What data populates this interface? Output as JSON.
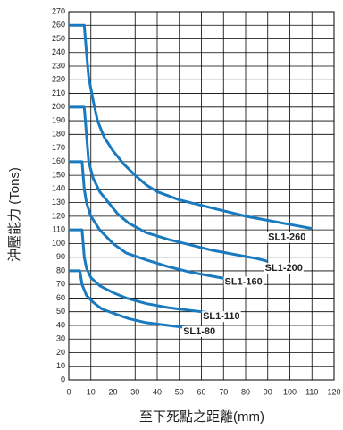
{
  "chart_data": {
    "type": "line",
    "xlabel": "至下死點之距離(mm)",
    "ylabel": "沖壓能力 (Tons)",
    "xlim": [
      0,
      120
    ],
    "xticks": [
      0,
      10,
      20,
      30,
      40,
      50,
      60,
      70,
      80,
      90,
      100,
      110,
      120
    ],
    "ylim": [
      0,
      270
    ],
    "yticks": [
      0,
      10,
      20,
      30,
      40,
      50,
      60,
      70,
      80,
      90,
      100,
      110,
      120,
      130,
      140,
      150,
      160,
      170,
      180,
      190,
      200,
      210,
      220,
      230,
      240,
      250,
      260,
      270
    ],
    "grid": true,
    "series": [
      {
        "name": "SL1-260",
        "color": "#1a7ac0",
        "x": [
          0,
          7,
          8,
          9,
          11,
          13,
          16,
          20,
          25,
          30,
          35,
          40,
          50,
          60,
          70,
          80,
          90,
          100,
          110
        ],
        "values": [
          260,
          260,
          240,
          222,
          205,
          190,
          178,
          168,
          158,
          150,
          143,
          138,
          132,
          128,
          124,
          120,
          117,
          114,
          111
        ]
      },
      {
        "name": "SL1-200",
        "color": "#1a7ac0",
        "x": [
          0,
          7,
          8,
          9,
          11,
          14,
          18,
          22,
          27,
          35,
          45,
          55,
          65,
          75,
          85,
          90
        ],
        "values": [
          200,
          200,
          180,
          160,
          148,
          138,
          130,
          122,
          115,
          108,
          103,
          99,
          95,
          92,
          89,
          87
        ]
      },
      {
        "name": "SL1-160",
        "color": "#1a7ac0",
        "x": [
          0,
          6,
          7,
          8,
          10,
          14,
          20,
          26,
          35,
          45,
          55,
          65,
          75
        ],
        "values": [
          160,
          160,
          140,
          130,
          120,
          110,
          100,
          93,
          88,
          83,
          79,
          76,
          73
        ]
      },
      {
        "name": "SL1-110",
        "color": "#1a7ac0",
        "x": [
          0,
          6,
          7,
          8,
          10,
          14,
          20,
          26,
          35,
          45,
          55,
          65
        ],
        "values": [
          110,
          110,
          90,
          82,
          75,
          69,
          64,
          60,
          56,
          53,
          51,
          49
        ]
      },
      {
        "name": "SL1-80",
        "color": "#1a7ac0",
        "x": [
          0,
          5,
          6,
          8,
          11,
          15,
          20,
          27,
          35,
          45,
          55
        ],
        "values": [
          80,
          80,
          70,
          62,
          57,
          52,
          49,
          45,
          42,
          40,
          38
        ]
      }
    ]
  }
}
